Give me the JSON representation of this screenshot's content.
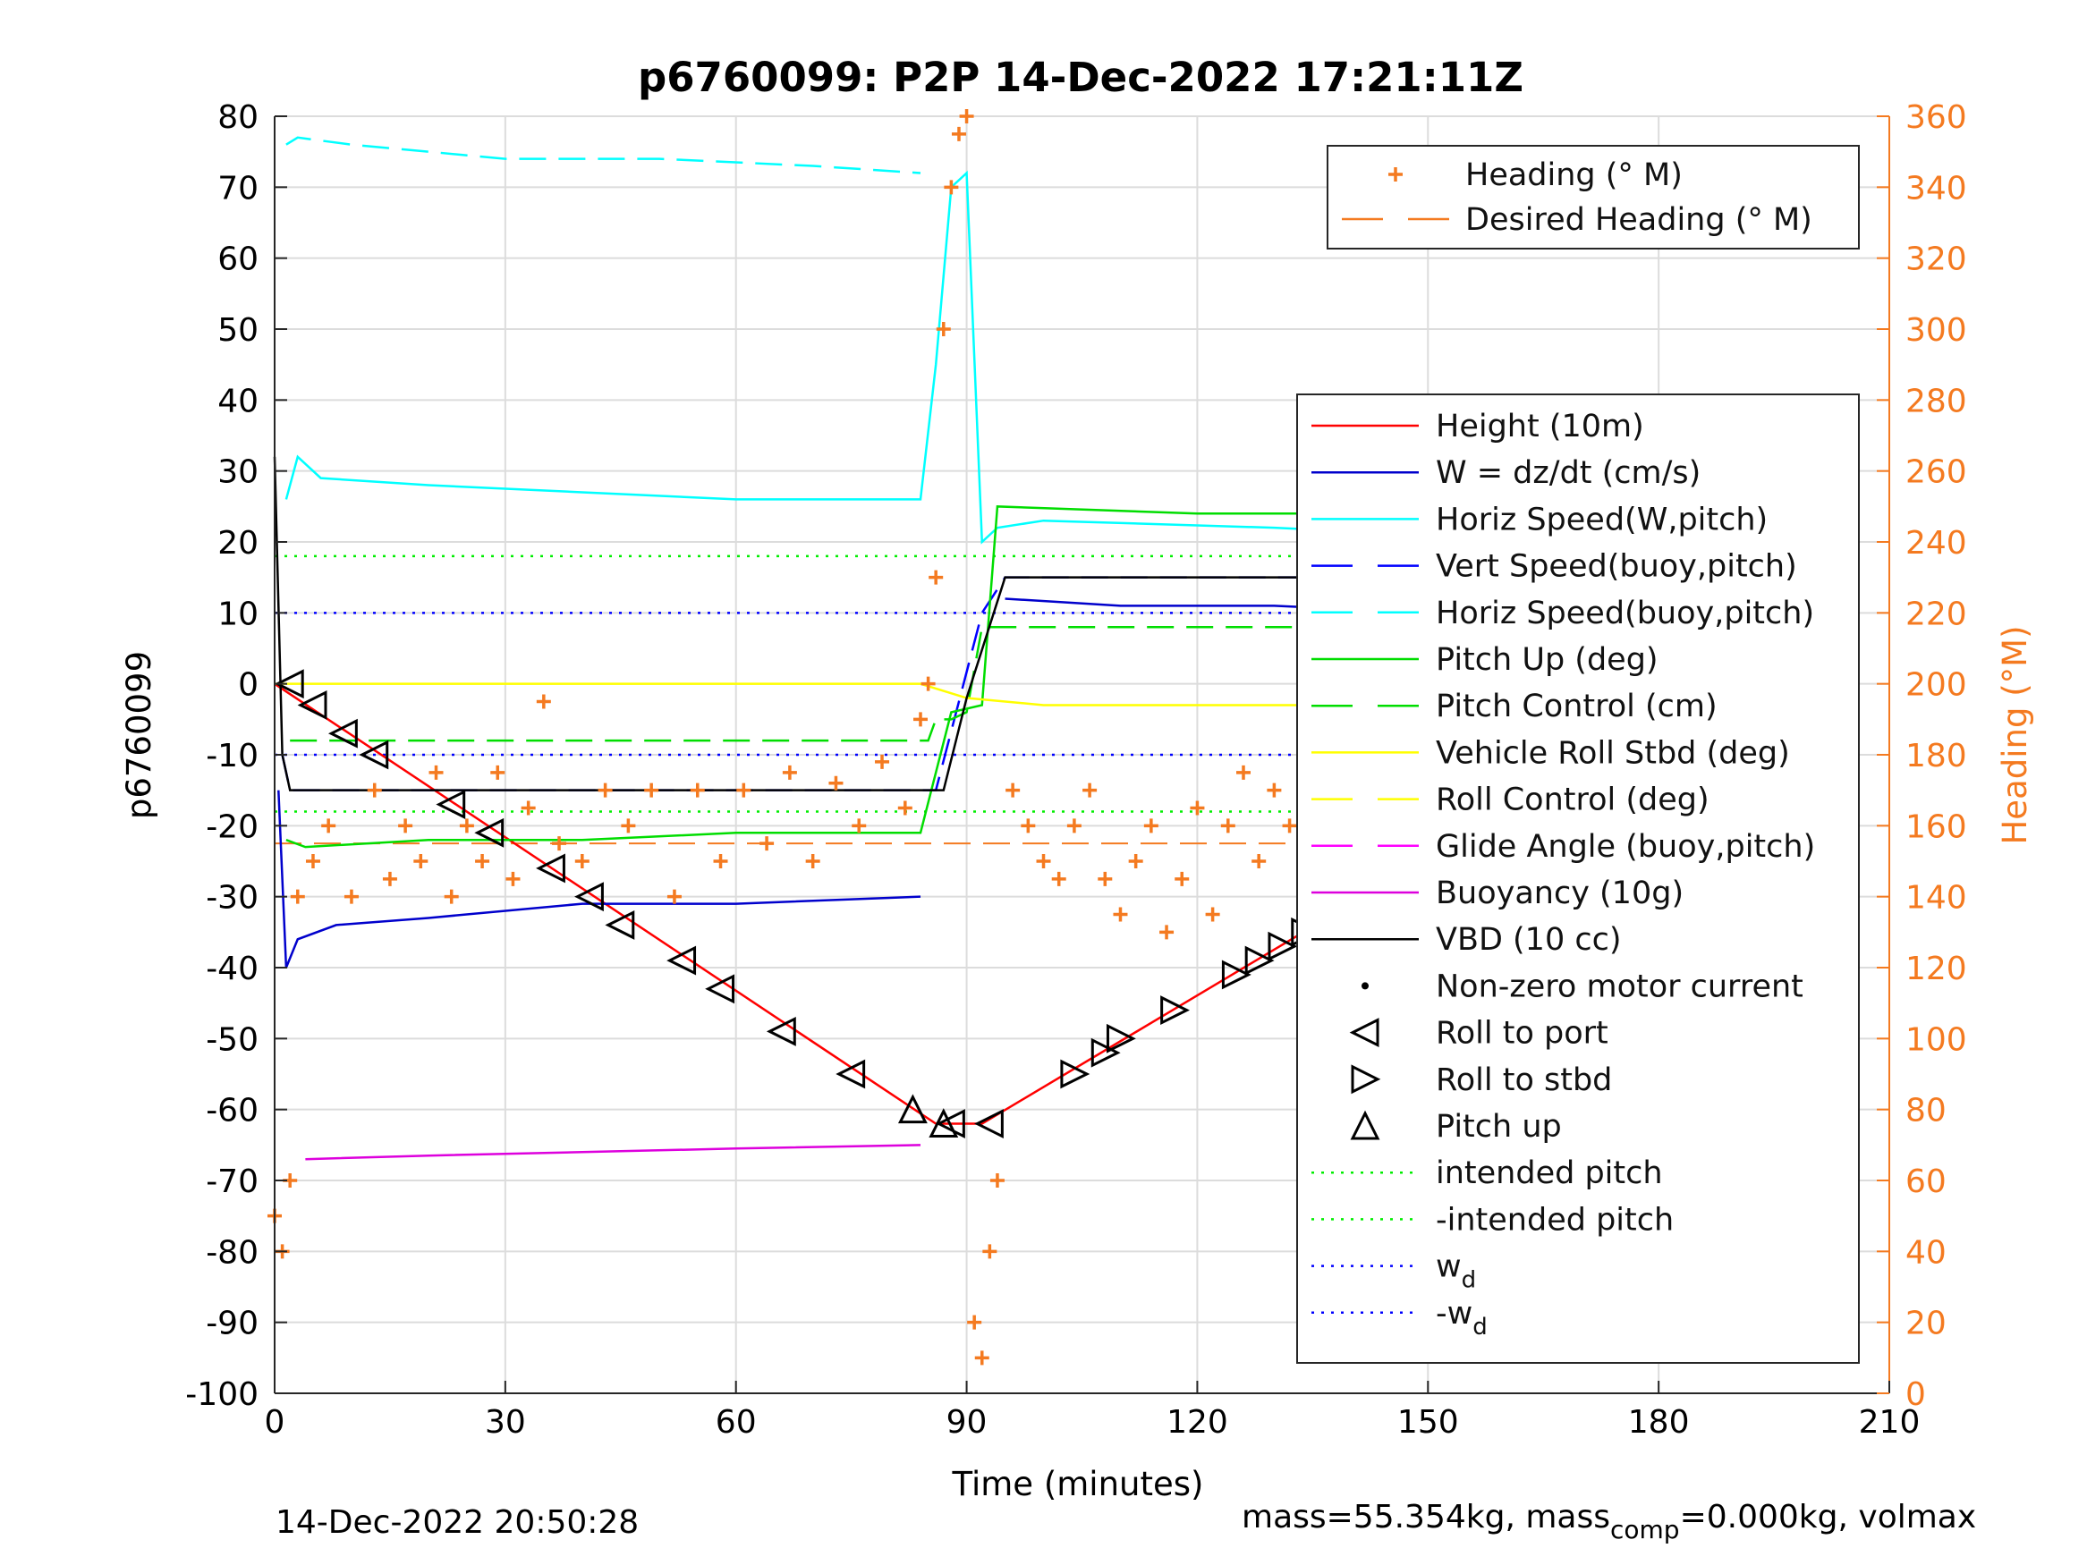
{
  "chart_data": {
    "type": "line",
    "title": "p6760099: P2P 14-Dec-2022 17:21:11Z",
    "xlabel": "Time (minutes)",
    "ylabel_left": "p6760099",
    "ylabel_right": "Heading (°M)",
    "xlim": [
      0,
      210
    ],
    "ylim_left": [
      -100,
      80
    ],
    "ylim_right": [
      0,
      360
    ],
    "x_ticks": [
      0,
      30,
      60,
      90,
      120,
      150,
      180,
      210
    ],
    "y_ticks_left": [
      -100,
      -90,
      -80,
      -70,
      -60,
      -50,
      -40,
      -30,
      -20,
      -10,
      0,
      10,
      20,
      30,
      40,
      50,
      60,
      70,
      80
    ],
    "y_ticks_right": [
      0,
      20,
      40,
      60,
      80,
      100,
      120,
      140,
      160,
      180,
      200,
      220,
      240,
      260,
      280,
      300,
      320,
      340,
      360
    ],
    "grid": true,
    "colors": {
      "height": "#ff0000",
      "w": "#0000cc",
      "horiz_speed": "#00ffff",
      "vert_speed": "#0000ff",
      "horiz_speed_buoy": "#0000ff",
      "pitch": "#00dd00",
      "pitch_control": "#00dd00",
      "roll": "#ffff00",
      "roll_control": "#ffff00",
      "glide_angle": "#ff00ff",
      "buoyancy": "#dd00dd",
      "vbd": "#000000",
      "heading": "#f47a20",
      "intended_pitch": "#00ee00",
      "wd": "#0000ff",
      "axis_right": "#f47a20"
    },
    "legend_heading": [
      {
        "label": "Heading (° M)",
        "style": "plus",
        "color": "#f47a20"
      },
      {
        "label": "Desired Heading (° M)",
        "style": "dash",
        "color": "#f47a20"
      }
    ],
    "legend_main": [
      {
        "label": "Height (10m)",
        "style": "line",
        "color": "#ff0000"
      },
      {
        "label": "W = dz/dt (cm/s)",
        "style": "line",
        "color": "#0000cc"
      },
      {
        "label": "Horiz Speed(W,pitch)",
        "style": "line",
        "color": "#00ffff"
      },
      {
        "label": "Vert Speed(buoy,pitch)",
        "style": "dash",
        "color": "#0000ff"
      },
      {
        "label": "Horiz Speed(buoy,pitch)",
        "style": "dash",
        "color": "#00ffff"
      },
      {
        "label": "Pitch Up (deg)",
        "style": "line",
        "color": "#00dd00"
      },
      {
        "label": "Pitch Control (cm)",
        "style": "dash",
        "color": "#00dd00"
      },
      {
        "label": "Vehicle Roll Stbd (deg)",
        "style": "line",
        "color": "#ffff00"
      },
      {
        "label": "Roll Control (deg)",
        "style": "dash",
        "color": "#ffff00"
      },
      {
        "label": "Glide Angle (buoy,pitch)",
        "style": "dash",
        "color": "#ff00ff"
      },
      {
        "label": "Buoyancy (10g)",
        "style": "line",
        "color": "#dd00dd"
      },
      {
        "label": "VBD (10 cc)",
        "style": "line",
        "color": "#000000"
      },
      {
        "label": "Non-zero motor current",
        "style": "dot",
        "color": "#000000"
      },
      {
        "label": "Roll to port",
        "style": "tri-left",
        "color": "#000000"
      },
      {
        "label": "Roll to stbd",
        "style": "tri-right",
        "color": "#000000"
      },
      {
        "label": "Pitch up",
        "style": "tri-up",
        "color": "#000000"
      },
      {
        "label": "intended pitch",
        "style": "dots",
        "color": "#00ee00"
      },
      {
        "label": "-intended pitch",
        "style": "dots",
        "color": "#00ee00"
      },
      {
        "label": "w",
        "sub": "d",
        "style": "dots",
        "color": "#0000ff"
      },
      {
        "label": "-w",
        "sub": "d",
        "style": "dots",
        "color": "#0000ff"
      }
    ],
    "series": [
      {
        "name": "Height (10m)",
        "x": [
          0,
          86,
          92,
          188
        ],
        "y": [
          0,
          -62,
          -62,
          0
        ]
      },
      {
        "name": "W = dz/dt (cm/s)",
        "x": [
          0.5,
          1.5,
          3,
          8,
          20,
          40,
          60,
          84
        ],
        "y": [
          -15,
          -40,
          -36,
          -34,
          -33,
          -31,
          -31,
          -30
        ]
      },
      {
        "name": "W = dz/dt (cm/s)",
        "x": [
          95,
          110,
          130,
          150,
          180,
          188
        ],
        "y": [
          12,
          11,
          11,
          10,
          9,
          9
        ]
      },
      {
        "name": "Horiz Speed(W,pitch)",
        "x": [
          1.5,
          3,
          6,
          20,
          40,
          60,
          84,
          86,
          88,
          90,
          92,
          94,
          100,
          130,
          150,
          170,
          188
        ],
        "y": [
          26,
          32,
          29,
          28,
          27,
          26,
          26,
          45,
          70,
          72,
          20,
          22,
          23,
          22,
          21,
          20,
          20
        ]
      },
      {
        "name": "Horiz Speed(buoy,pitch)",
        "x": [
          1.5,
          3,
          10,
          30,
          50,
          70,
          84
        ],
        "y": [
          76,
          77,
          76,
          74,
          74,
          73,
          72
        ]
      },
      {
        "name": "Pitch Up (deg)",
        "x": [
          1.5,
          4,
          20,
          40,
          60,
          84,
          88,
          92,
          94,
          120,
          150,
          188
        ],
        "y": [
          -22,
          -23,
          -22,
          -22,
          -21,
          -21,
          -4,
          -3,
          25,
          24,
          24,
          25
        ]
      },
      {
        "name": "Pitch Control (cm)",
        "x": [
          2,
          85,
          86,
          88,
          90,
          92,
          188
        ],
        "y": [
          -8,
          -8,
          -5,
          -5,
          -4,
          8,
          8
        ]
      },
      {
        "name": "Vehicle Roll Stbd (deg)",
        "x": [
          0,
          10,
          20,
          40,
          60,
          80,
          84,
          90,
          100,
          120,
          140,
          160,
          188
        ],
        "y": [
          0,
          0,
          0,
          0,
          0,
          0,
          0,
          -2,
          -3,
          -3,
          -3,
          -3,
          -3
        ]
      },
      {
        "name": "Buoyancy (10g)",
        "x": [
          4,
          20,
          40,
          60,
          84
        ],
        "y": [
          -67,
          -66.5,
          -66,
          -65.5,
          -65
        ]
      },
      {
        "name": "VBD (10 cc)",
        "x": [
          0,
          1,
          2,
          84,
          87,
          90,
          95,
          188
        ],
        "y": [
          32,
          -10,
          -15,
          -15,
          -15,
          -2,
          15,
          15
        ]
      }
    ],
    "rev_dash": {
      "name": "Vert Speed(buoy,pitch)",
      "x": [
        1,
        2,
        84,
        86,
        92,
        95,
        188
      ],
      "y": [
        -10,
        -15,
        -15,
        -15,
        10,
        15,
        15
      ]
    },
    "heading_points": {
      "name": "Heading (° M)",
      "x": [
        0,
        1,
        2,
        3,
        5,
        7,
        10,
        13,
        15,
        17,
        19,
        21,
        23,
        25,
        27,
        29,
        31,
        33,
        35,
        37,
        40,
        43,
        46,
        49,
        52,
        55,
        58,
        61,
        64,
        67,
        70,
        73,
        76,
        79,
        82,
        84,
        85,
        86,
        87,
        88,
        89,
        90,
        91,
        92,
        93,
        94,
        96,
        98,
        100,
        102,
        104,
        106,
        108,
        110,
        112,
        114,
        116,
        118,
        120,
        122,
        124,
        126,
        128,
        130,
        132,
        134,
        136,
        138,
        140,
        142,
        144,
        146,
        148,
        150,
        152,
        154,
        156,
        158,
        160,
        162,
        164,
        166,
        168,
        170,
        172,
        174,
        176,
        178,
        180,
        182,
        184,
        186,
        188
      ],
      "y": [
        50,
        40,
        60,
        140,
        150,
        160,
        140,
        170,
        145,
        160,
        150,
        175,
        140,
        160,
        150,
        175,
        145,
        165,
        195,
        155,
        150,
        170,
        160,
        170,
        140,
        170,
        150,
        170,
        155,
        175,
        150,
        172,
        160,
        178,
        165,
        190,
        200,
        230,
        300,
        340,
        355,
        360,
        20,
        10,
        40,
        60,
        170,
        160,
        150,
        145,
        160,
        170,
        145,
        135,
        150,
        160,
        130,
        145,
        165,
        135,
        160,
        175,
        150,
        170,
        160,
        180,
        140,
        165,
        155,
        175,
        195,
        155,
        160,
        150,
        165,
        170,
        140,
        160,
        175,
        155,
        170,
        180,
        160,
        185,
        165,
        175,
        190,
        170,
        195,
        180,
        160,
        200,
        170
      ]
    },
    "desired_heading": {
      "name": "Desired Heading (° M)",
      "x": [
        0,
        188
      ],
      "y": [
        155,
        155
      ]
    },
    "intended_pitch": {
      "value": 18,
      "neg": -18
    },
    "wd": {
      "value": 10,
      "neg": -10
    },
    "roll_to_port": {
      "x": [
        2,
        5,
        9,
        13,
        23,
        28,
        36,
        41,
        45,
        53,
        58,
        66,
        75,
        88,
        93
      ],
      "y": [
        0,
        -3,
        -7,
        -10,
        -17,
        -21,
        -26,
        -30,
        -34,
        -39,
        -43,
        -49,
        -55,
        -62,
        -62
      ]
    },
    "roll_to_stbd": {
      "x": [
        104,
        108,
        110,
        117,
        125,
        128,
        131,
        134,
        137,
        143,
        146,
        150,
        153,
        157,
        160,
        163,
        166,
        170,
        174,
        178,
        181,
        184,
        186,
        188
      ],
      "y": [
        -55,
        -52,
        -50,
        -46,
        -41,
        -39,
        -37,
        -35,
        -33,
        -28,
        -26,
        -24,
        -22,
        -20,
        -18,
        -16,
        -14,
        -12,
        -9,
        -6,
        -4,
        -2,
        -1,
        0
      ]
    },
    "pitch_up": {
      "x": [
        83,
        87
      ],
      "y": [
        -60,
        -62
      ]
    }
  },
  "footer": {
    "date": "14-Dec-2022 20:50:28",
    "mass_prefix": "mass=55.354kg, mass",
    "mass_sub": "comp",
    "mass_suffix": "=0.000kg, volmax"
  }
}
